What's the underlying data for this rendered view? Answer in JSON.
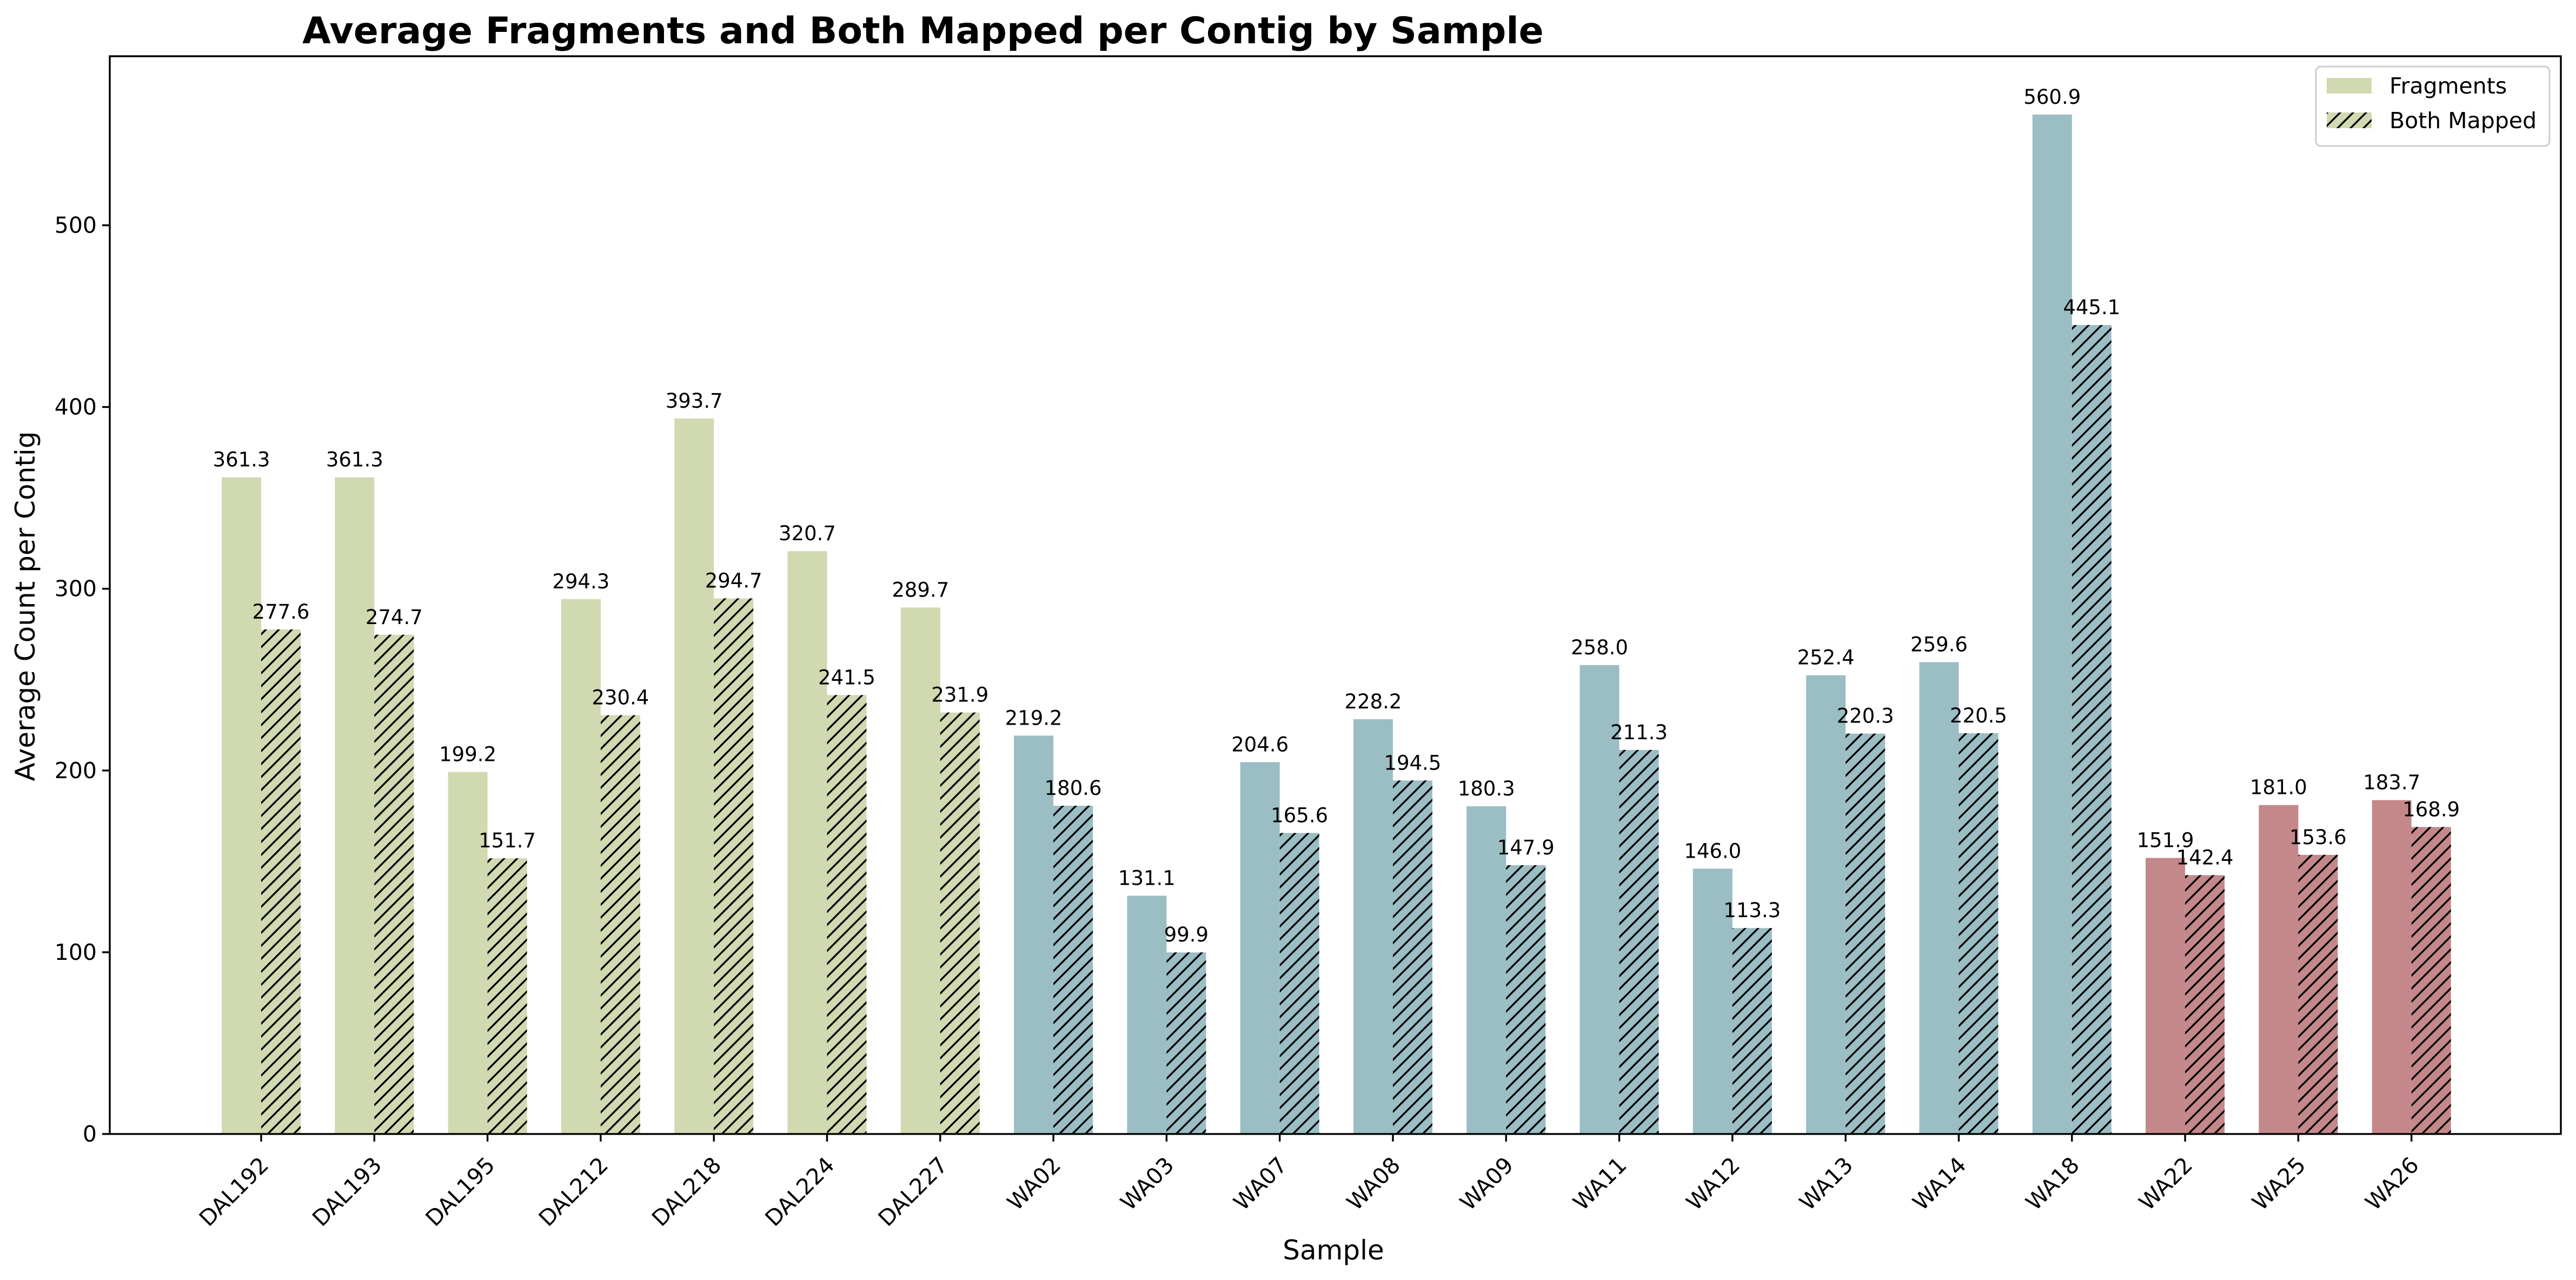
{
  "chart_data": {
    "type": "bar",
    "title": "Average Fragments and Both Mapped per Contig by Sample",
    "xlabel": "Sample",
    "ylabel": "Average Count per Contig",
    "ylim": [
      0,
      593
    ],
    "yticks": [
      0,
      100,
      200,
      300,
      400,
      500
    ],
    "grid": false,
    "legend_position": "top-right",
    "categories": [
      "DAL192",
      "DAL193",
      "DAL195",
      "DAL212",
      "DAL218",
      "DAL224",
      "DAL227",
      "WA02",
      "WA03",
      "WA07",
      "WA08",
      "WA09",
      "WA11",
      "WA12",
      "WA13",
      "WA14",
      "WA18",
      "WA22",
      "WA25",
      "WA26"
    ],
    "category_colors": [
      "#d0d9b0",
      "#d0d9b0",
      "#d0d9b0",
      "#d0d9b0",
      "#d0d9b0",
      "#d0d9b0",
      "#d0d9b0",
      "#9bbdc4",
      "#9bbdc4",
      "#9bbdc4",
      "#9bbdc4",
      "#9bbdc4",
      "#9bbdc4",
      "#9bbdc4",
      "#9bbdc4",
      "#9bbdc4",
      "#9bbdc4",
      "#c4888a",
      "#c4888a",
      "#c4888a"
    ],
    "series": [
      {
        "name": "Fragments",
        "hatch": false,
        "values": [
          361.3,
          361.3,
          199.2,
          294.3,
          393.7,
          320.7,
          289.7,
          219.2,
          131.1,
          204.6,
          228.2,
          180.3,
          258.0,
          146.0,
          252.4,
          259.6,
          560.9,
          151.9,
          181.0,
          183.7
        ],
        "labels": [
          "361.3",
          "361.3",
          "199.2",
          "294.3",
          "393.7",
          "320.7",
          "289.7",
          "219.2",
          "131.1",
          "204.6",
          "228.2",
          "180.3",
          "258.0",
          "146.0",
          "252.4",
          "259.6",
          "560.9",
          "151.9",
          "181.0",
          "183.7"
        ]
      },
      {
        "name": "Both Mapped",
        "hatch": true,
        "values": [
          277.6,
          274.7,
          151.7,
          230.4,
          294.7,
          241.5,
          231.9,
          180.6,
          99.9,
          165.6,
          194.5,
          147.9,
          211.3,
          113.3,
          220.3,
          220.5,
          445.1,
          142.4,
          153.6,
          168.9
        ],
        "labels": [
          "277.6",
          "274.7",
          "151.7",
          "230.4",
          "294.7",
          "241.5",
          "231.9",
          "180.6",
          "99.9",
          "165.6",
          "194.5",
          "147.9",
          "211.3",
          "113.3",
          "220.3",
          "220.5",
          "445.1",
          "142.4",
          "153.6",
          "168.9"
        ]
      }
    ],
    "legend_swatch_color": "#d0d9b0"
  }
}
